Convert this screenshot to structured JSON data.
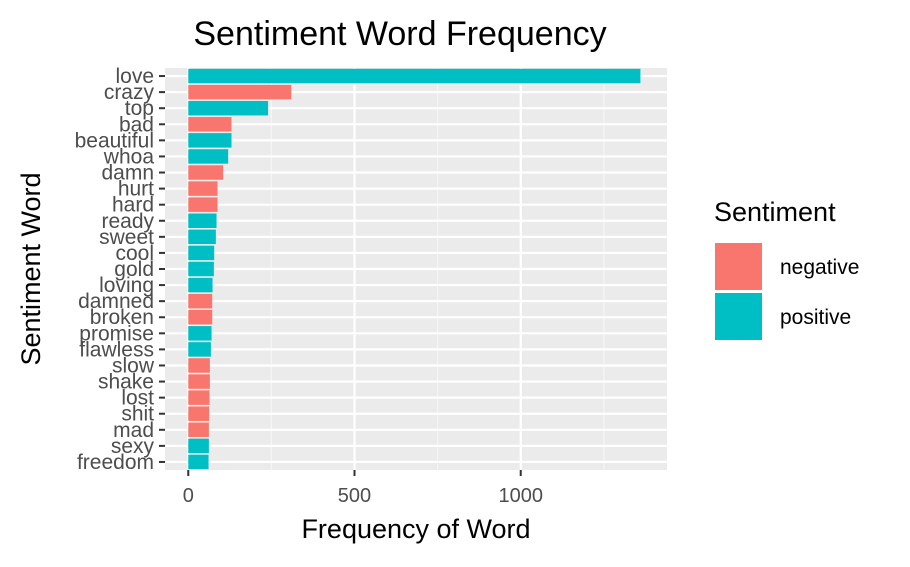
{
  "chart_data": {
    "type": "bar",
    "orientation": "horizontal",
    "title": "Sentiment Word Frequency",
    "xlabel": "Frequency of Word",
    "ylabel": "Sentiment Word",
    "xlim": [
      -70,
      1440
    ],
    "xticks": [
      0,
      500,
      1000
    ],
    "x_minor_ticks": [
      250,
      750,
      1250
    ],
    "grid": true,
    "legend": {
      "title": "Sentiment",
      "placement": "right",
      "entries": [
        {
          "name": "negative",
          "color": "#F8766D"
        },
        {
          "name": "positive",
          "color": "#00BFC4"
        }
      ]
    },
    "categories": [
      "love",
      "crazy",
      "top",
      "bad",
      "beautiful",
      "whoa",
      "damn",
      "hurt",
      "hard",
      "ready",
      "sweet",
      "cool",
      "gold",
      "loving",
      "damned",
      "broken",
      "promise",
      "flawless",
      "slow",
      "shake",
      "lost",
      "shit",
      "mad",
      "sexy",
      "freedom"
    ],
    "values": [
      1360,
      310,
      240,
      130,
      130,
      120,
      105,
      88,
      88,
      85,
      83,
      78,
      77,
      73,
      72,
      72,
      70,
      68,
      65,
      65,
      64,
      63,
      62,
      62,
      61
    ],
    "sentiment": [
      "positive",
      "negative",
      "positive",
      "negative",
      "positive",
      "positive",
      "negative",
      "negative",
      "negative",
      "positive",
      "positive",
      "positive",
      "positive",
      "positive",
      "negative",
      "negative",
      "positive",
      "positive",
      "negative",
      "negative",
      "negative",
      "negative",
      "negative",
      "positive",
      "positive"
    ]
  }
}
